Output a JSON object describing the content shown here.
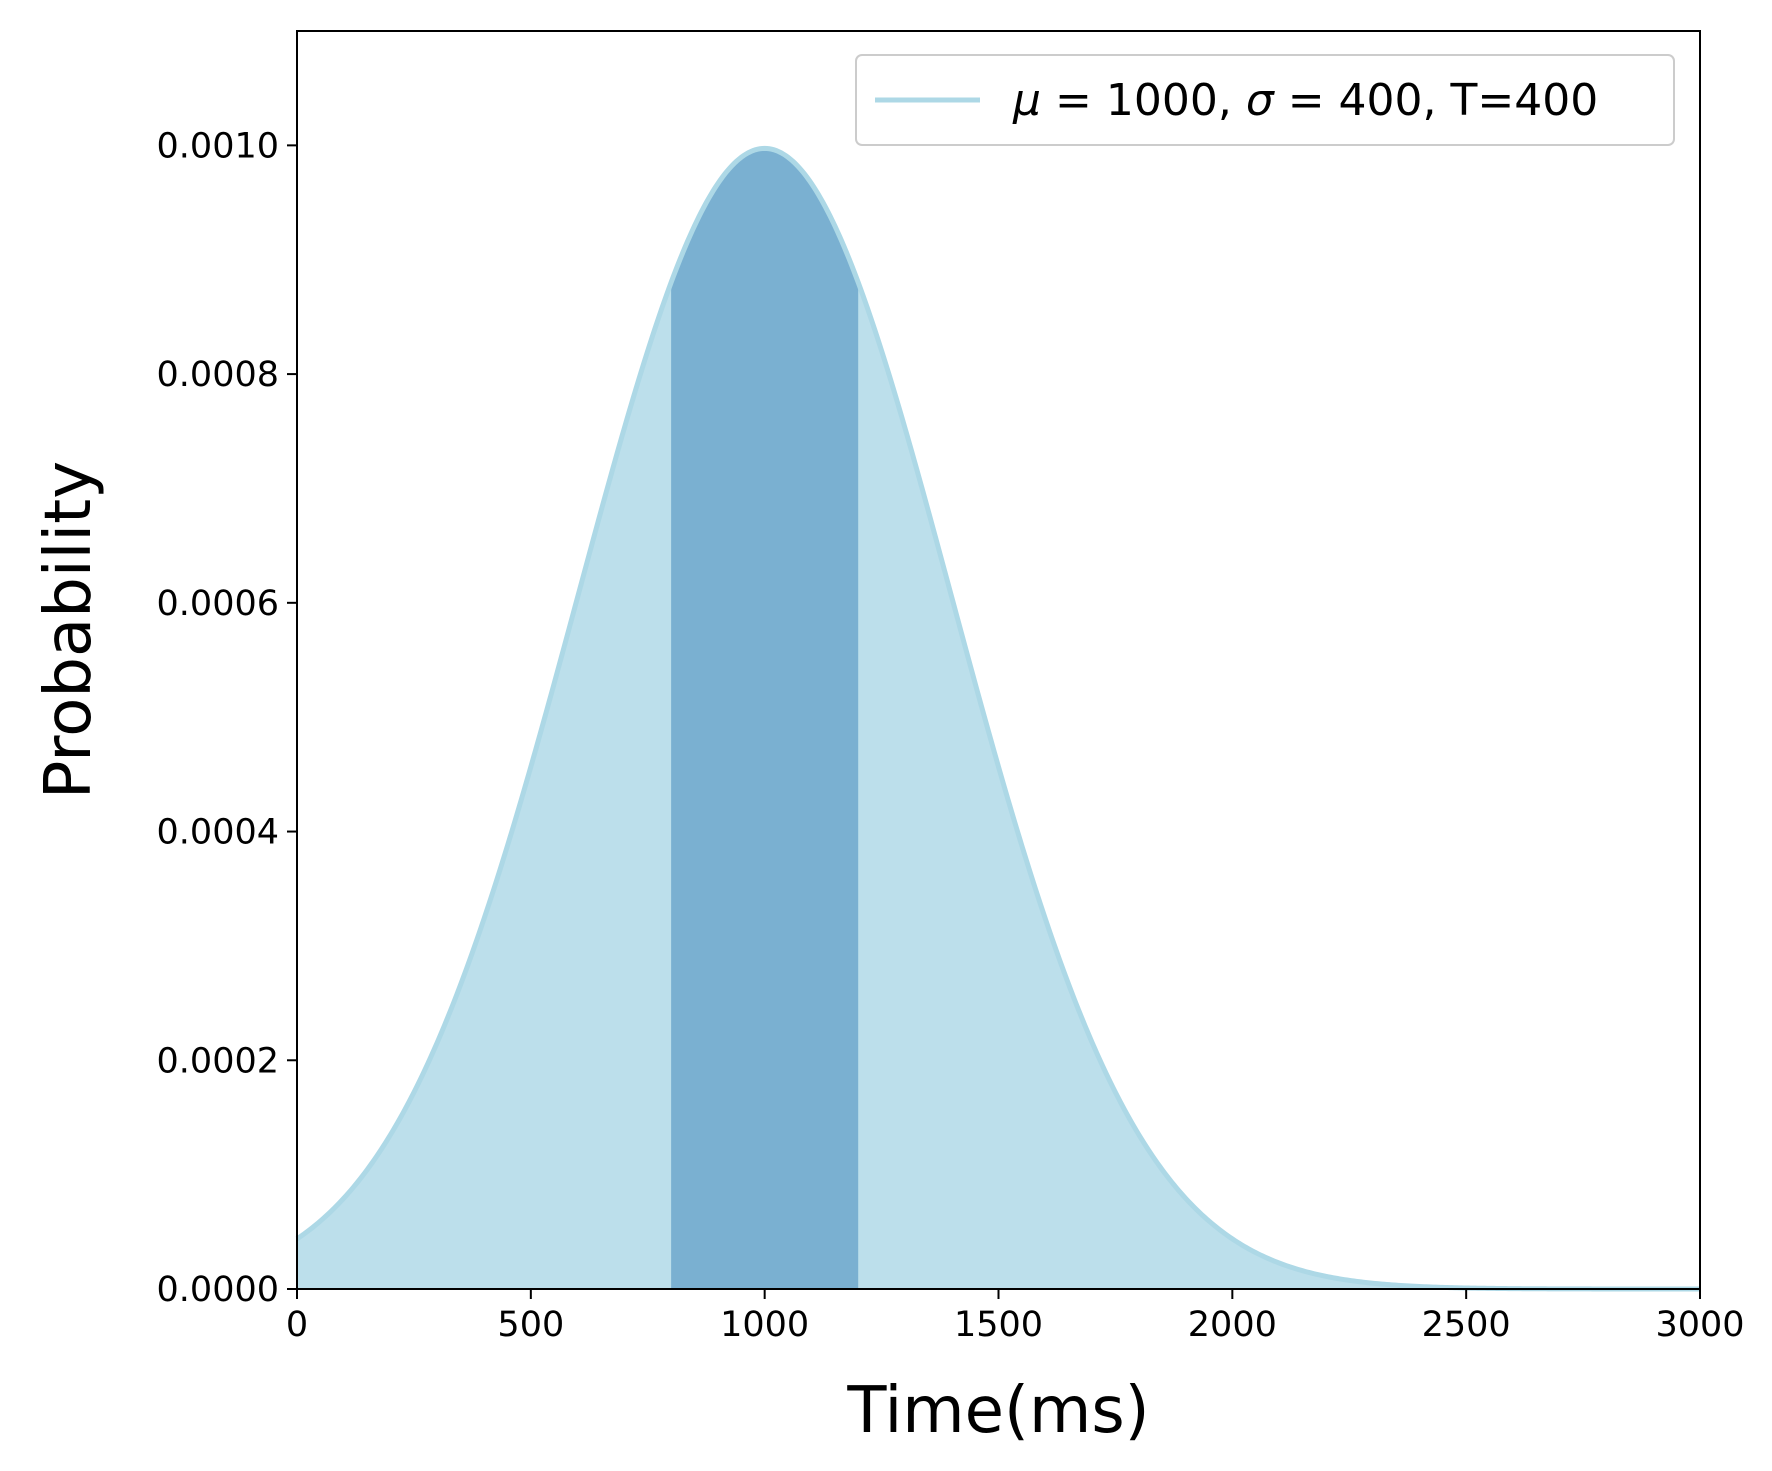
{
  "chart_data": {
    "type": "area",
    "title": "",
    "xlabel": "Time(ms)",
    "ylabel": "Probability",
    "xlim": [
      0,
      3000
    ],
    "ylim": [
      0,
      0.0011
    ],
    "x_ticks": [
      0,
      500,
      1000,
      1500,
      2000,
      2500,
      3000
    ],
    "x_tick_labels": [
      "0",
      "500",
      "1000",
      "1500",
      "2000",
      "2500",
      "3000"
    ],
    "y_ticks": [
      0,
      0.0002,
      0.0004,
      0.0006,
      0.0008,
      0.001
    ],
    "y_tick_labels": [
      "0.0000",
      "0.0002",
      "0.0004",
      "0.0006",
      "0.0008",
      "0.0010"
    ],
    "grid": false,
    "legend_position": "top-right",
    "series": [
      {
        "name": "$\\mu=1000,\\sigma=400$, T=400",
        "distribution": "normal",
        "mean": 1000,
        "sd": 400,
        "color": "#add8e6",
        "fill_color": "#add8e6",
        "highlight_range": [
          800,
          1200
        ],
        "highlight_color": "#6fa8cd"
      }
    ],
    "legend": {
      "mu_symbol": "μ",
      "sigma_symbol": "σ",
      "mu_value": "1000",
      "sigma_value": "400",
      "suffix": ", T=400"
    }
  }
}
